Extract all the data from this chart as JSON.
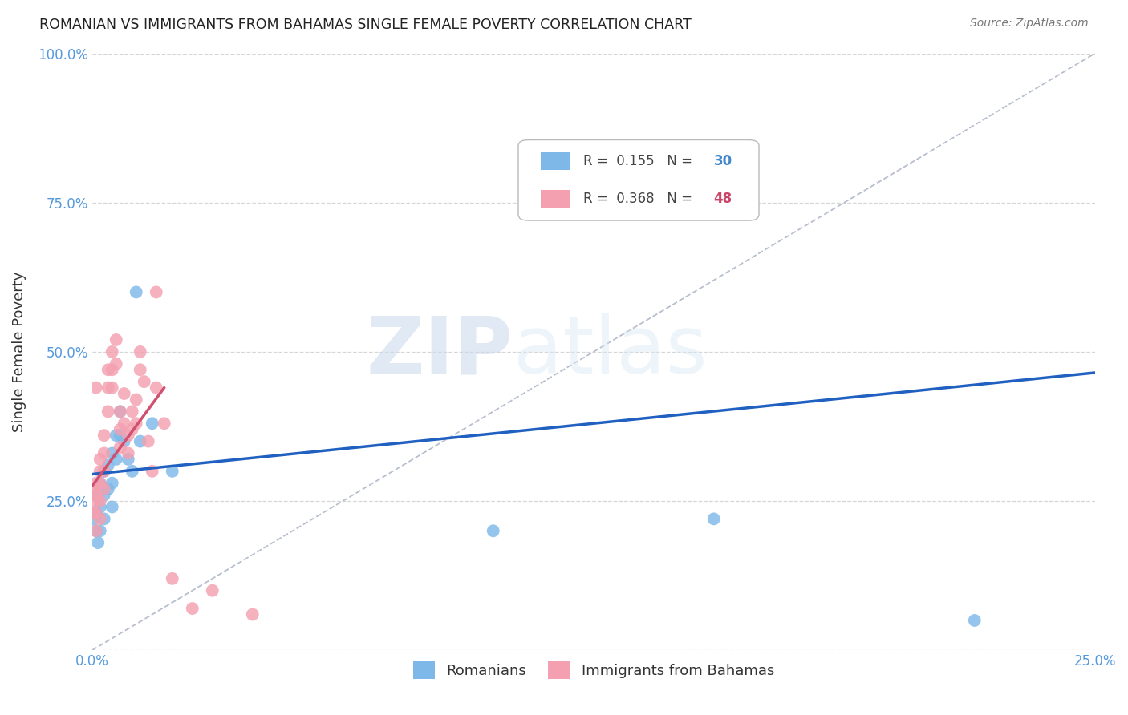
{
  "title": "ROMANIAN VS IMMIGRANTS FROM BAHAMAS SINGLE FEMALE POVERTY CORRELATION CHART",
  "source": "Source: ZipAtlas.com",
  "ylabel": "Single Female Poverty",
  "xlim": [
    0.0,
    0.25
  ],
  "ylim": [
    0.0,
    1.0
  ],
  "xtick_positions": [
    0.0,
    0.05,
    0.1,
    0.15,
    0.2,
    0.25
  ],
  "xtick_labels": [
    "0.0%",
    "",
    "",
    "",
    "",
    "25.0%"
  ],
  "ytick_positions": [
    0.0,
    0.25,
    0.5,
    0.75,
    1.0
  ],
  "ytick_labels": [
    "",
    "25.0%",
    "50.0%",
    "75.0%",
    "100.0%"
  ],
  "background_color": "#ffffff",
  "grid_color": "#cccccc",
  "romanians_color": "#7eb8e8",
  "bahamas_color": "#f4a0b0",
  "trendline_blue_color": "#2060c0",
  "trendline_pink_color": "#d05070",
  "diagonal_color": "#b0b8c8",
  "R_romanians": 0.155,
  "N_romanians": 30,
  "R_bahamas": 0.368,
  "N_bahamas": 48,
  "romanians_x": [
    0.0005,
    0.001,
    0.0015,
    0.001,
    0.001,
    0.002,
    0.002,
    0.002,
    0.003,
    0.003,
    0.003,
    0.004,
    0.004,
    0.005,
    0.005,
    0.005,
    0.006,
    0.006,
    0.007,
    0.007,
    0.008,
    0.009,
    0.01,
    0.011,
    0.012,
    0.015,
    0.02,
    0.1,
    0.155,
    0.22
  ],
  "romanians_y": [
    0.22,
    0.2,
    0.18,
    0.26,
    0.23,
    0.28,
    0.24,
    0.2,
    0.3,
    0.26,
    0.22,
    0.31,
    0.27,
    0.33,
    0.28,
    0.24,
    0.36,
    0.32,
    0.4,
    0.36,
    0.35,
    0.32,
    0.3,
    0.6,
    0.35,
    0.38,
    0.3,
    0.2,
    0.22,
    0.05
  ],
  "bahamas_x": [
    0.0003,
    0.0005,
    0.0008,
    0.001,
    0.001,
    0.001,
    0.001,
    0.001,
    0.002,
    0.002,
    0.002,
    0.002,
    0.002,
    0.003,
    0.003,
    0.003,
    0.003,
    0.004,
    0.004,
    0.004,
    0.005,
    0.005,
    0.005,
    0.006,
    0.006,
    0.007,
    0.007,
    0.007,
    0.008,
    0.008,
    0.009,
    0.009,
    0.01,
    0.01,
    0.011,
    0.011,
    0.012,
    0.012,
    0.013,
    0.014,
    0.015,
    0.016,
    0.016,
    0.018,
    0.02,
    0.025,
    0.03,
    0.04
  ],
  "bahamas_y": [
    0.23,
    0.27,
    0.25,
    0.44,
    0.28,
    0.26,
    0.23,
    0.2,
    0.32,
    0.3,
    0.28,
    0.25,
    0.22,
    0.36,
    0.33,
    0.3,
    0.27,
    0.47,
    0.44,
    0.4,
    0.5,
    0.47,
    0.44,
    0.52,
    0.48,
    0.4,
    0.37,
    0.34,
    0.43,
    0.38,
    0.36,
    0.33,
    0.4,
    0.37,
    0.42,
    0.38,
    0.5,
    0.47,
    0.45,
    0.35,
    0.3,
    0.44,
    0.6,
    0.38,
    0.12,
    0.07,
    0.1,
    0.06
  ],
  "watermark_zip": "ZIP",
  "watermark_atlas": "atlas",
  "trendline_blue_x0": 0.0,
  "trendline_blue_x1": 0.25,
  "trendline_blue_y0": 0.295,
  "trendline_blue_y1": 0.465,
  "trendline_pink_x0": 0.0,
  "trendline_pink_x1": 0.018,
  "trendline_pink_y0": 0.275,
  "trendline_pink_y1": 0.44
}
